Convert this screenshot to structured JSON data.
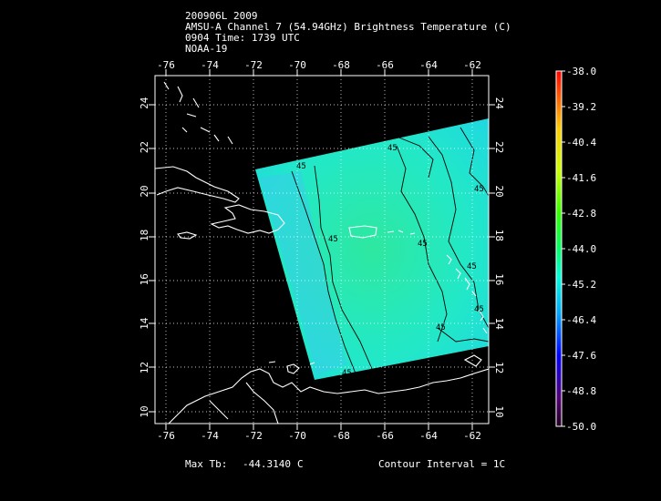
{
  "header": {
    "line1": "200906L 2009",
    "line2": "AMSU-A Channel 7 (54.94GHz) Brightness Temperature (C)",
    "line3": "0904 Time: 1739 UTC",
    "line4": "NOAA-19"
  },
  "axes": {
    "lon_ticks": [
      -76,
      -74,
      -72,
      -70,
      -68,
      -66,
      -64,
      -62
    ],
    "lat_ticks": [
      10,
      12,
      14,
      16,
      18,
      20,
      22,
      24
    ]
  },
  "contour_labels": [
    "45",
    "45",
    "45",
    "45",
    "45",
    "45",
    "45",
    "45",
    "45"
  ],
  "colorbar": {
    "labels": [
      "-38.0",
      "-39.2",
      "-40.4",
      "-41.6",
      "-42.8",
      "-44.0",
      "-45.2",
      "-46.4",
      "-47.6",
      "-48.8",
      "-50.0"
    ],
    "colors": [
      "#ff0000",
      "#ff6600",
      "#ffcc00",
      "#ccff00",
      "#33ff00",
      "#00ff66",
      "#00ffcc",
      "#00ccff",
      "#0066ff",
      "#3300cc",
      "#660066",
      "#330033"
    ]
  },
  "footer": {
    "max_label": "Max Tb:",
    "max_value": "-44.3140",
    "max_unit": "C",
    "contour": "Contour Interval = 1C"
  },
  "colors": {
    "swath": "#22e8bd",
    "background": "#000000",
    "lines": "#ffffff"
  }
}
